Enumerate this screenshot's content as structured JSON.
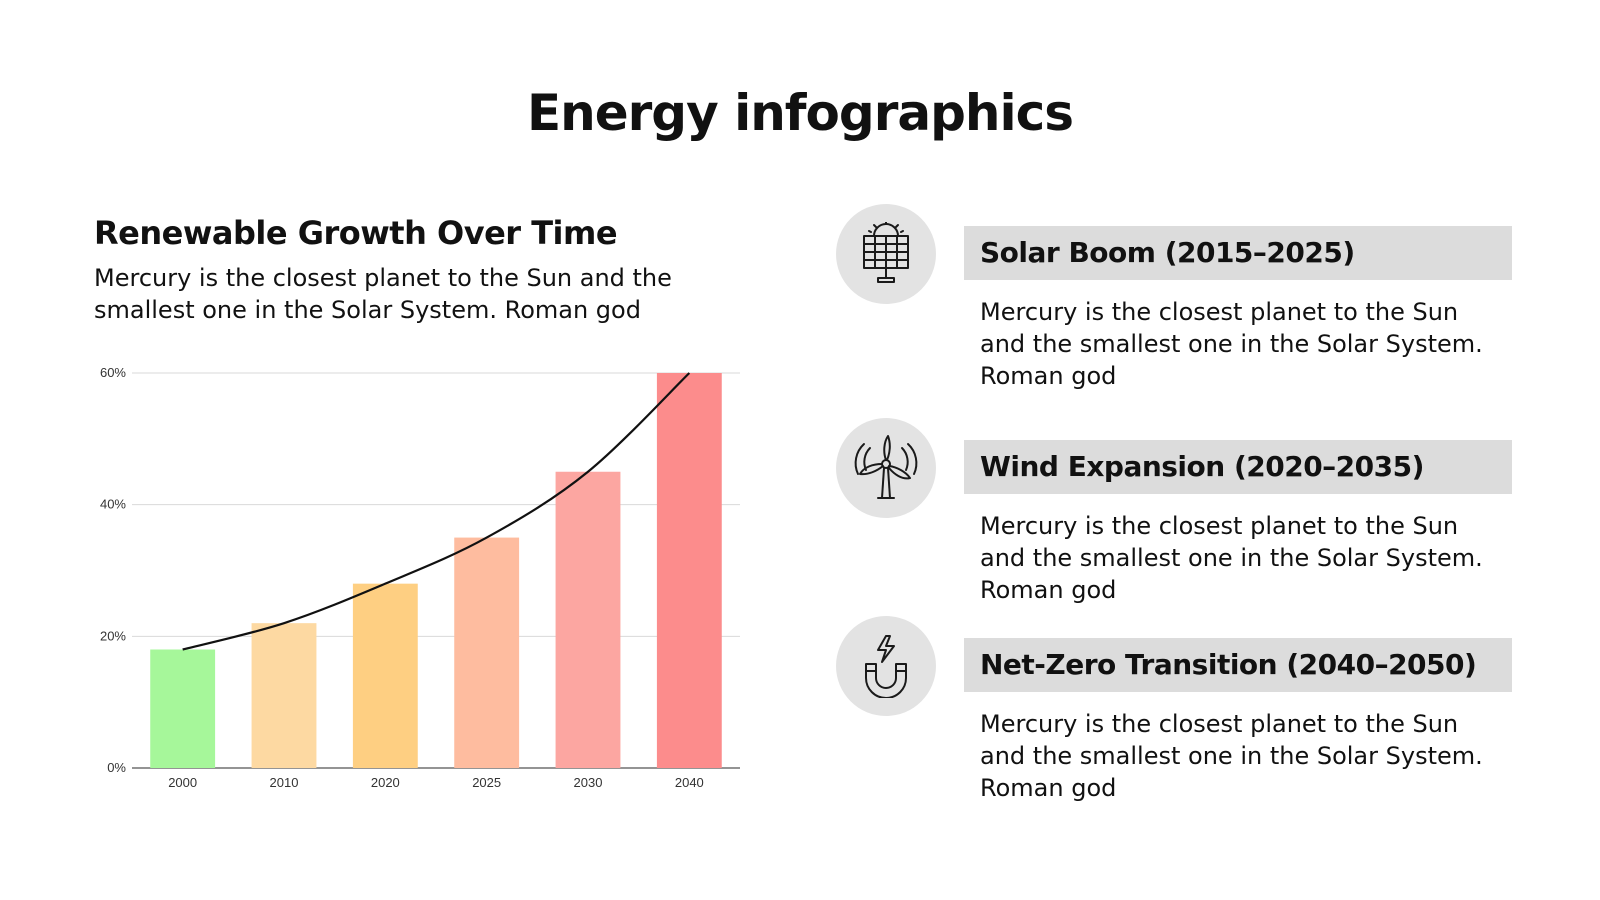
{
  "title": "Energy infographics",
  "chart_section": {
    "heading": "Renewable Growth Over Time",
    "description": "Mercury is the closest planet to the Sun and the smallest one in the Solar System. Roman god"
  },
  "chart_data": {
    "type": "bar",
    "title": "Renewable Growth Over Time",
    "categories": [
      "2000",
      "2010",
      "2020",
      "2025",
      "2030",
      "2040"
    ],
    "values": [
      18,
      22,
      28,
      35,
      45,
      60
    ],
    "trend_line": [
      18,
      22,
      28,
      35,
      45,
      60
    ],
    "bar_colors": [
      "#a6f79a",
      "#fdd9a2",
      "#fecf82",
      "#febc9f",
      "#fca6a1",
      "#fc8c8c"
    ],
    "y_ticks": [
      "0%",
      "20%",
      "40%",
      "60%"
    ],
    "ylim": [
      0,
      60
    ],
    "xlabel": "",
    "ylabel": "",
    "grid": true
  },
  "items": [
    {
      "icon": "solar-panel-icon",
      "title": "Solar Boom (2015–2025)",
      "text": "Mercury is the closest planet to the Sun and the smallest one in the Solar System. Roman god"
    },
    {
      "icon": "wind-turbine-icon",
      "title": "Wind Expansion (2020–2035)",
      "text": "Mercury is the closest planet to the Sun and the smallest one in the Solar System. Roman god"
    },
    {
      "icon": "magnet-energy-icon",
      "title": "Net-Zero Transition (2040–2050)",
      "text": "Mercury is the closest planet to the Sun and the smallest one in the Solar System. Roman god"
    }
  ],
  "colors": {
    "icon_circle": "#e3e3e3",
    "title_band": "#dcdcdc",
    "trend_line": "#111111"
  }
}
